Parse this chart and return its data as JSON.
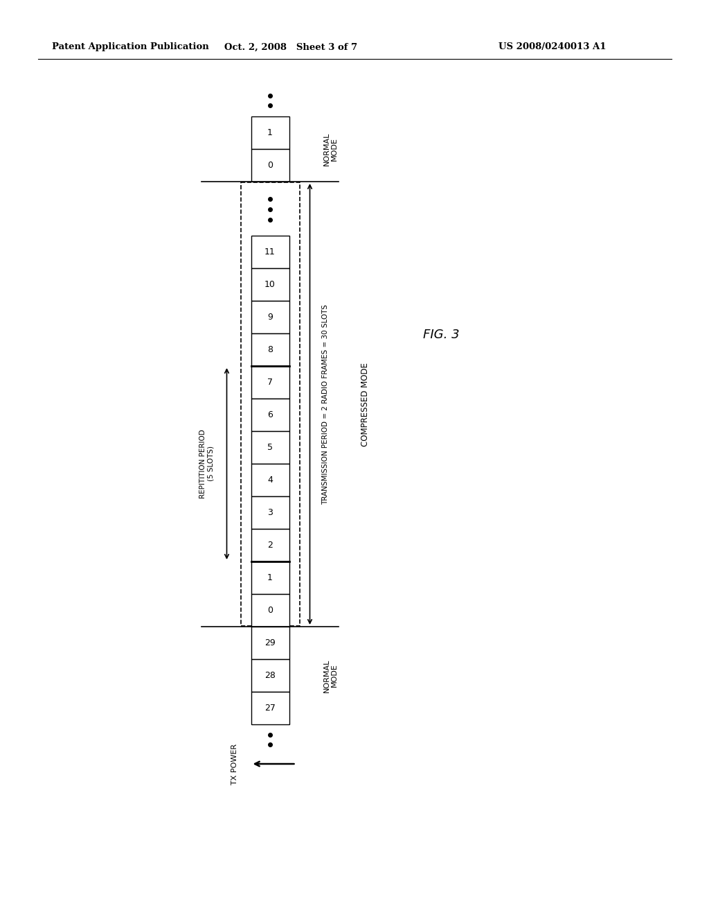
{
  "title_left": "Patent Application Publication",
  "title_mid": "Oct. 2, 2008   Sheet 3 of 7",
  "title_right": "US 2008/0240013 A1",
  "fig_label": "FIG. 3",
  "background": "#ffffff",
  "text_color": "#000000",
  "normal_top_slots": [
    "1",
    "0"
  ],
  "compressed_slots": [
    "11",
    "10",
    "9",
    "8",
    "7",
    "6",
    "5",
    "4",
    "3",
    "2",
    "1",
    "0"
  ],
  "normal_bottom_slots": [
    "29",
    "28",
    "27"
  ],
  "label_repetition_line1": "REPITITION PERIOD",
  "label_repetition_line2": "(5 SLOTS)",
  "label_transmission": "TRANSMISSION PERIOD = 2 RADIO FRAMES = 30 SLOTS",
  "label_compressed": "COMPRESSED MODE",
  "label_normal_top": "NORMAL\nMODE",
  "label_normal_bottom": "NORMAL\nMODE",
  "label_tx_power": "TX POWER"
}
